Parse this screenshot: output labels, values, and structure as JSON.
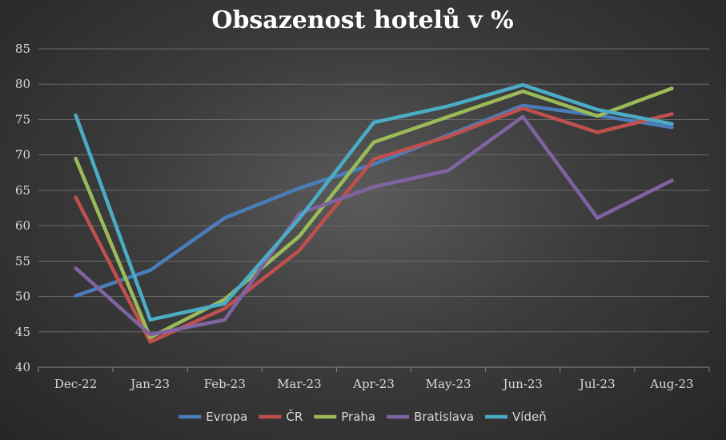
{
  "chart_data": {
    "type": "line",
    "title": "Obsazenost hotelů v %",
    "xlabel": "",
    "ylabel": "",
    "categories": [
      "Dec-22",
      "Jan-23",
      "Feb-23",
      "Mar-23",
      "Apr-23",
      "May-23",
      "Jun-23",
      "Jul-23",
      "Aug-23"
    ],
    "ylim": [
      40,
      85
    ],
    "yticks": [
      40,
      45,
      50,
      55,
      60,
      65,
      70,
      75,
      80,
      85
    ],
    "grid": true,
    "legend_position": "bottom",
    "series": [
      {
        "name": "Evropa",
        "color": "#4a7ebb",
        "values": [
          50.1,
          53.7,
          61.1,
          65.3,
          68.7,
          72.8,
          77.0,
          75.6,
          73.9
        ]
      },
      {
        "name": "ČR",
        "color": "#c0504d",
        "values": [
          64.0,
          43.6,
          48.3,
          56.5,
          69.4,
          72.6,
          76.6,
          73.2,
          75.8
        ]
      },
      {
        "name": "Praha",
        "color": "#9bbb59",
        "values": [
          69.5,
          44.2,
          49.6,
          58.5,
          71.8,
          75.4,
          79.0,
          75.5,
          79.4
        ]
      },
      {
        "name": "Bratislava",
        "color": "#8064a2",
        "values": [
          54.0,
          44.6,
          46.7,
          61.7,
          65.5,
          67.8,
          75.4,
          61.1,
          66.4
        ]
      },
      {
        "name": "Vídeň",
        "color": "#4bacc6",
        "values": [
          75.6,
          46.7,
          49.0,
          61.0,
          74.6,
          76.9,
          79.9,
          76.4,
          74.4
        ]
      }
    ]
  }
}
